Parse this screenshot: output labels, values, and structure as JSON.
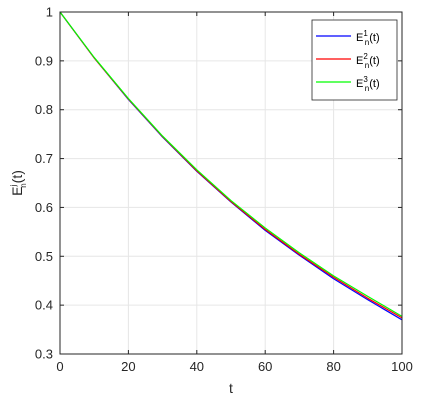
{
  "chart_data": {
    "type": "line",
    "title": "",
    "xlabel": "t",
    "ylabel": {
      "base": "E",
      "sup": "j",
      "sub": "n",
      "suffix": "(t)"
    },
    "xlim": [
      0,
      100
    ],
    "ylim": [
      0.3,
      1
    ],
    "x_ticks": [
      0,
      20,
      40,
      60,
      80,
      100
    ],
    "y_ticks": [
      0.3,
      0.4,
      0.5,
      0.6,
      0.7,
      0.8,
      0.9,
      1
    ],
    "grid": true,
    "legend_position": "top-right",
    "x": [
      0,
      10,
      20,
      30,
      40,
      50,
      60,
      70,
      80,
      90,
      100
    ],
    "series": [
      {
        "name": {
          "base": "E",
          "sup": "1",
          "sub": "n",
          "suffix": "(t)"
        },
        "color": "#0000ff",
        "values": [
          1.0,
          0.906,
          0.821,
          0.744,
          0.674,
          0.611,
          0.553,
          0.502,
          0.454,
          0.411,
          0.37
        ]
      },
      {
        "name": {
          "base": "E",
          "sup": "2",
          "sub": "n",
          "suffix": "(t)"
        },
        "color": "#ff0000",
        "values": [
          1.0,
          0.906,
          0.822,
          0.745,
          0.675,
          0.612,
          0.555,
          0.504,
          0.457,
          0.414,
          0.374
        ]
      },
      {
        "name": {
          "base": "E",
          "sup": "3",
          "sub": "n",
          "suffix": "(t)"
        },
        "color": "#00ff00",
        "values": [
          1.0,
          0.907,
          0.823,
          0.746,
          0.677,
          0.614,
          0.558,
          0.507,
          0.46,
          0.418,
          0.377
        ]
      }
    ]
  }
}
